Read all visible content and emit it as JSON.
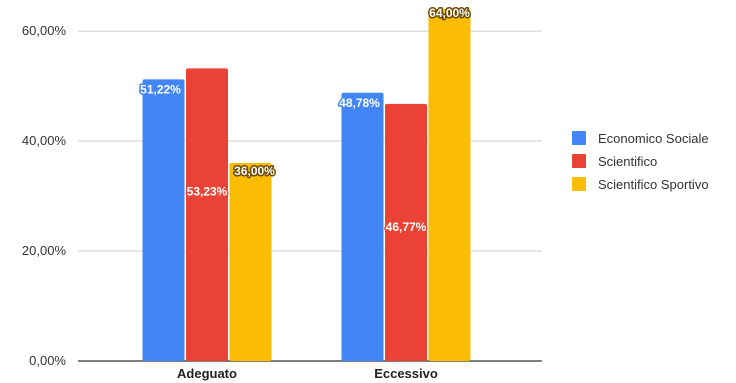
{
  "chart_data": {
    "type": "bar",
    "title": "",
    "xlabel": "",
    "ylabel": "",
    "categories": [
      "Adeguato",
      "Eccessivo"
    ],
    "series": [
      {
        "name": "Economico Sociale",
        "values": [
          51.22,
          48.78
        ],
        "labels": [
          "51,22%",
          "48,78%"
        ],
        "color": "#4285F4"
      },
      {
        "name": "Scientifico",
        "values": [
          53.23,
          46.77
        ],
        "labels": [
          "53,23%",
          "46,77%"
        ],
        "color": "#EA4335"
      },
      {
        "name": "Scientifico Sportivo",
        "values": [
          36.0,
          64.0
        ],
        "labels": [
          "36,00%",
          "64,00%"
        ],
        "color": "#FBBC04"
      }
    ],
    "yticks": [
      {
        "value": 0,
        "label": "0,00%"
      },
      {
        "value": 20,
        "label": "20,00%"
      },
      {
        "value": 40,
        "label": "40,00%"
      },
      {
        "value": 60,
        "label": "60,00%"
      }
    ],
    "ylim": [
      0,
      65
    ],
    "grid": true,
    "legend_position": "right"
  }
}
